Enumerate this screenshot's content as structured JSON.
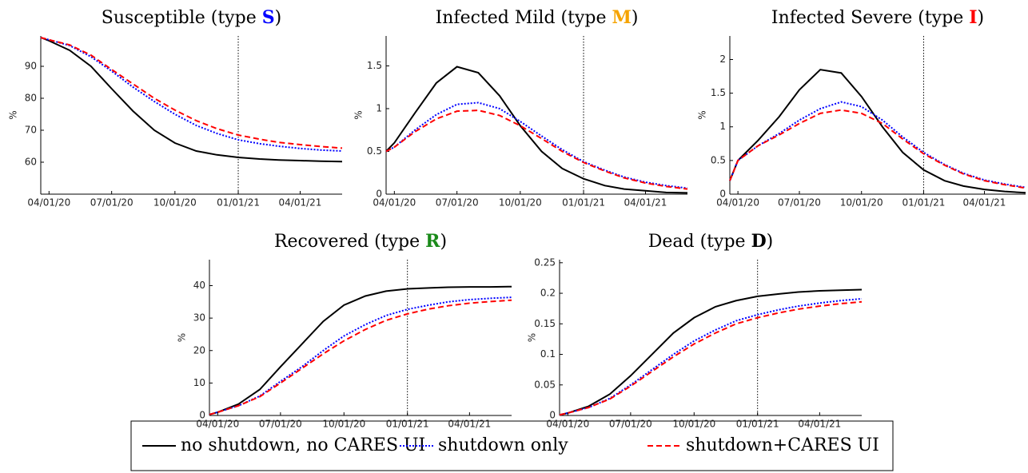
{
  "chart_data": [
    {
      "type": "line",
      "title_parts": [
        "Susceptible (type ",
        "S",
        ")"
      ],
      "title_symbol_color": "#0000ff",
      "ylabel": "%",
      "x": [
        "03/20/20",
        "04/01/20",
        "05/01/20",
        "06/01/20",
        "07/01/20",
        "08/01/20",
        "09/01/20",
        "10/01/20",
        "11/01/20",
        "12/01/20",
        "01/01/21",
        "02/01/21",
        "03/01/21",
        "04/01/21",
        "05/01/21",
        "06/01/21"
      ],
      "xlim": [
        "03/20/20",
        "06/01/21"
      ],
      "xticks": [
        "04/01/20",
        "07/01/20",
        "10/01/20",
        "01/01/21",
        "04/01/21"
      ],
      "vline": "01/01/21",
      "ylim": [
        50,
        99.5
      ],
      "yticks": [
        60,
        70,
        80,
        90
      ],
      "series": [
        {
          "name": "no shutdown, no CARES UI",
          "color": "#000000",
          "dash": "solid",
          "values": [
            99,
            98,
            95,
            90,
            83,
            76,
            70,
            66,
            63.5,
            62.3,
            61.5,
            61,
            60.7,
            60.5,
            60.3,
            60.2
          ]
        },
        {
          "name": "shutdown only",
          "color": "#0000ff",
          "dash": "dotted",
          "values": [
            99,
            98.3,
            96.5,
            93,
            88.5,
            83.5,
            79,
            75,
            71.5,
            69,
            67,
            65.8,
            65,
            64.3,
            63.8,
            63.5
          ]
        },
        {
          "name": "shutdown+CARES UI",
          "color": "#ff0000",
          "dash": "dashed",
          "values": [
            99,
            98.3,
            96.7,
            93.5,
            89,
            84.5,
            80,
            76.3,
            73,
            70.5,
            68.5,
            67.2,
            66.2,
            65.5,
            64.9,
            64.4
          ]
        }
      ]
    },
    {
      "type": "line",
      "title_parts": [
        "Infected Mild (type ",
        "M",
        ")"
      ],
      "title_symbol_color": "#f5a300",
      "ylabel": "%",
      "x": [
        "03/20/20",
        "04/01/20",
        "05/01/20",
        "06/01/20",
        "07/01/20",
        "08/01/20",
        "09/01/20",
        "10/01/20",
        "11/01/20",
        "12/01/20",
        "01/01/21",
        "02/01/21",
        "03/01/21",
        "04/01/21",
        "05/01/21",
        "06/01/21"
      ],
      "xlim": [
        "03/20/20",
        "06/01/21"
      ],
      "xticks": [
        "04/01/20",
        "07/01/20",
        "10/01/20",
        "01/01/21",
        "04/01/21"
      ],
      "vline": "01/01/21",
      "ylim": [
        0,
        1.85
      ],
      "yticks": [
        0,
        0.5,
        1,
        1.5
      ],
      "series": [
        {
          "name": "no shutdown, no CARES UI",
          "color": "#000000",
          "dash": "solid",
          "values": [
            0.5,
            0.6,
            0.95,
            1.3,
            1.49,
            1.42,
            1.15,
            0.8,
            0.5,
            0.3,
            0.18,
            0.1,
            0.06,
            0.04,
            0.02,
            0.015
          ]
        },
        {
          "name": "shutdown only",
          "color": "#0000ff",
          "dash": "dotted",
          "values": [
            0.5,
            0.55,
            0.75,
            0.93,
            1.05,
            1.07,
            1.0,
            0.85,
            0.68,
            0.52,
            0.38,
            0.28,
            0.2,
            0.14,
            0.1,
            0.07
          ]
        },
        {
          "name": "shutdown+CARES UI",
          "color": "#ff0000",
          "dash": "dashed",
          "values": [
            0.5,
            0.55,
            0.73,
            0.88,
            0.97,
            0.98,
            0.92,
            0.8,
            0.65,
            0.5,
            0.37,
            0.27,
            0.19,
            0.13,
            0.09,
            0.06
          ]
        }
      ]
    },
    {
      "type": "line",
      "title_parts": [
        "Infected Severe (type ",
        "I",
        ")"
      ],
      "title_symbol_color": "#ff0000",
      "ylabel": "%",
      "x": [
        "03/20/20",
        "04/01/20",
        "05/01/20",
        "06/01/20",
        "07/01/20",
        "08/01/20",
        "09/01/20",
        "10/01/20",
        "11/01/20",
        "12/01/20",
        "01/01/21",
        "02/01/21",
        "03/01/21",
        "04/01/21",
        "05/01/21",
        "06/01/21"
      ],
      "xlim": [
        "03/20/20",
        "06/01/21"
      ],
      "xticks": [
        "04/01/20",
        "07/01/20",
        "10/01/20",
        "01/01/21",
        "04/01/21"
      ],
      "vline": "01/01/21",
      "ylim": [
        0,
        2.35
      ],
      "yticks": [
        0,
        0.5,
        1,
        1.5,
        2
      ],
      "series": [
        {
          "name": "no shutdown, no CARES UI",
          "color": "#000000",
          "dash": "solid",
          "values": [
            0.2,
            0.5,
            0.8,
            1.15,
            1.55,
            1.85,
            1.8,
            1.45,
            1.0,
            0.62,
            0.36,
            0.2,
            0.12,
            0.07,
            0.04,
            0.02
          ]
        },
        {
          "name": "shutdown only",
          "color": "#0000ff",
          "dash": "dotted",
          "values": [
            0.2,
            0.5,
            0.72,
            0.9,
            1.1,
            1.27,
            1.37,
            1.3,
            1.1,
            0.85,
            0.62,
            0.44,
            0.31,
            0.21,
            0.15,
            0.1
          ]
        },
        {
          "name": "shutdown+CARES UI",
          "color": "#ff0000",
          "dash": "dashed",
          "values": [
            0.2,
            0.5,
            0.72,
            0.88,
            1.05,
            1.2,
            1.25,
            1.2,
            1.05,
            0.82,
            0.6,
            0.43,
            0.3,
            0.2,
            0.14,
            0.09
          ]
        }
      ]
    },
    {
      "type": "line",
      "title_parts": [
        "Recovered (type ",
        "R",
        ")"
      ],
      "title_symbol_color": "#1a8a1a",
      "ylabel": "%",
      "x": [
        "03/20/20",
        "04/01/20",
        "05/01/20",
        "06/01/20",
        "07/01/20",
        "08/01/20",
        "09/01/20",
        "10/01/20",
        "11/01/20",
        "12/01/20",
        "01/01/21",
        "02/01/21",
        "03/01/21",
        "04/01/21",
        "05/01/21",
        "06/01/21"
      ],
      "xlim": [
        "03/20/20",
        "06/01/21"
      ],
      "xticks": [
        "04/01/20",
        "07/01/20",
        "10/01/20",
        "01/01/21",
        "04/01/21"
      ],
      "vline": "01/01/21",
      "ylim": [
        0,
        48
      ],
      "yticks": [
        0,
        10,
        20,
        30,
        40
      ],
      "series": [
        {
          "name": "no shutdown, no CARES UI",
          "color": "#000000",
          "dash": "solid",
          "values": [
            0.3,
            1,
            3.5,
            8,
            15,
            22,
            29,
            34,
            36.8,
            38.3,
            39,
            39.3,
            39.5,
            39.6,
            39.6,
            39.7
          ]
        },
        {
          "name": "shutdown only",
          "color": "#0000ff",
          "dash": "dotted",
          "values": [
            0.3,
            1,
            3,
            6,
            10.5,
            15,
            20,
            24.5,
            28,
            30.8,
            32.7,
            34,
            35,
            35.7,
            36.1,
            36.4
          ]
        },
        {
          "name": "shutdown+CARES UI",
          "color": "#ff0000",
          "dash": "dashed",
          "values": [
            0.3,
            1,
            3,
            5.8,
            10,
            14.5,
            19,
            23,
            26.5,
            29.3,
            31.3,
            32.8,
            33.8,
            34.6,
            35.1,
            35.5
          ]
        }
      ]
    },
    {
      "type": "line",
      "title_parts": [
        "Dead (type ",
        "D",
        ")"
      ],
      "title_symbol_color": "#000000",
      "ylabel": "%",
      "x": [
        "03/20/20",
        "04/01/20",
        "05/01/20",
        "06/01/20",
        "07/01/20",
        "08/01/20",
        "09/01/20",
        "10/01/20",
        "11/01/20",
        "12/01/20",
        "01/01/21",
        "02/01/21",
        "03/01/21",
        "04/01/21",
        "05/01/21",
        "06/01/21"
      ],
      "xlim": [
        "03/20/20",
        "06/01/21"
      ],
      "xticks": [
        "04/01/20",
        "07/01/20",
        "10/01/20",
        "01/01/21",
        "04/01/21"
      ],
      "vline": "01/01/21",
      "ylim": [
        0,
        0.255
      ],
      "yticks": [
        0,
        0.05,
        0.1,
        0.15,
        0.2,
        0.25
      ],
      "series": [
        {
          "name": "no shutdown, no CARES UI",
          "color": "#000000",
          "dash": "solid",
          "values": [
            0.001,
            0.004,
            0.015,
            0.035,
            0.065,
            0.1,
            0.135,
            0.16,
            0.178,
            0.188,
            0.195,
            0.199,
            0.202,
            0.204,
            0.205,
            0.206
          ]
        },
        {
          "name": "shutdown only",
          "color": "#0000ff",
          "dash": "dotted",
          "values": [
            0.001,
            0.004,
            0.013,
            0.028,
            0.05,
            0.075,
            0.1,
            0.122,
            0.14,
            0.155,
            0.165,
            0.173,
            0.179,
            0.184,
            0.188,
            0.191
          ]
        },
        {
          "name": "shutdown+CARES UI",
          "color": "#ff0000",
          "dash": "dashed",
          "values": [
            0.001,
            0.004,
            0.013,
            0.027,
            0.048,
            0.072,
            0.096,
            0.117,
            0.135,
            0.15,
            0.16,
            0.168,
            0.174,
            0.179,
            0.183,
            0.186
          ]
        }
      ]
    }
  ]
}
